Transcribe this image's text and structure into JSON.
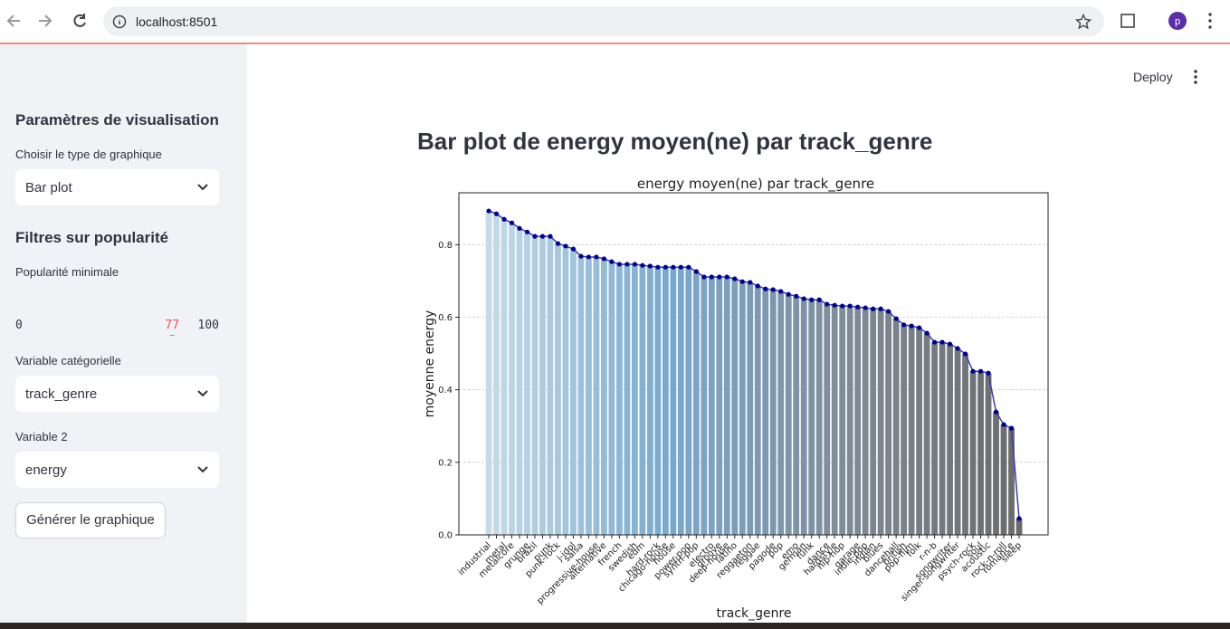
{
  "browser": {
    "url": "localhost:8501"
  },
  "header": {
    "deploy": "Deploy"
  },
  "sidebar": {
    "title_params": "Paramètres de visualisation",
    "chart_type_label": "Choisir le type de graphique",
    "chart_type": "Bar plot",
    "title_filters": "Filtres sur popularité",
    "slider": {
      "label": "Popularité minimale",
      "value": 77,
      "min": 0,
      "max": 100
    },
    "cat_label": "Variable catégorielle",
    "cat": "track_genre",
    "var2_label": "Variable 2",
    "var2": "energy",
    "button": "Générer le graphique"
  },
  "heading": "Bar plot de energy moyen(ne) par track_genre",
  "chart_data": {
    "type": "bar",
    "title": "energy moyen(ne) par track_genre",
    "x_label": "track_genre",
    "y_label": "moyenne energy",
    "categories": [
      "industrial",
      null,
      "metal",
      "metalcore",
      null,
      "grunge",
      "brazil",
      null,
      "punk",
      "punk-rock",
      null,
      "j-idol",
      "salsa",
      null,
      "progressive-house",
      "alternative",
      null,
      "french",
      null,
      "swedish",
      "edm",
      null,
      "hard-rock",
      "chicago-house",
      "house",
      null,
      "power-pop",
      "synth-pop",
      null,
      "electro",
      "groove",
      "deep-house",
      "latino",
      null,
      "reggaeton",
      "reggae",
      null,
      "pagode",
      "pop",
      null,
      "emo",
      "german",
      "funk",
      null,
      "dance",
      "hardstyle",
      "hip-hop",
      null,
      "garage",
      "indie-pop",
      "indian",
      "blues",
      null,
      "dancehall",
      "british",
      "pop-film",
      "folk",
      null,
      "r-n-b",
      null,
      "songwriter",
      "singer-songwriter",
      null,
      "psych-rock",
      "soul",
      "acoustic",
      null,
      "rock-n-roll",
      "romance",
      "sleep"
    ],
    "values": [
      0.893,
      0.885,
      0.87,
      0.86,
      0.845,
      0.835,
      0.823,
      0.823,
      0.823,
      0.803,
      0.796,
      0.788,
      0.768,
      0.766,
      0.766,
      0.761,
      0.753,
      0.746,
      0.746,
      0.746,
      0.743,
      0.741,
      0.738,
      0.738,
      0.738,
      0.738,
      0.738,
      0.726,
      0.711,
      0.711,
      0.711,
      0.711,
      0.706,
      0.698,
      0.696,
      0.686,
      0.678,
      0.676,
      0.671,
      0.663,
      0.658,
      0.651,
      0.648,
      0.648,
      0.636,
      0.633,
      0.631,
      0.631,
      0.628,
      0.626,
      0.623,
      0.623,
      0.616,
      0.596,
      0.579,
      0.576,
      0.571,
      0.556,
      0.531,
      0.531,
      0.526,
      0.514,
      0.499,
      0.451,
      0.451,
      0.446,
      0.339,
      0.304,
      0.294,
      0.045
    ],
    "ylim": [
      0,
      0.943
    ],
    "yticks": [
      {
        "value": 0,
        "label": "0.0"
      },
      {
        "value": 0.2,
        "label": "0.2"
      },
      {
        "value": 0.4,
        "label": "0.4"
      },
      {
        "value": 0.6,
        "label": "0.6"
      },
      {
        "value": 0.8,
        "label": "0.8"
      }
    ],
    "grid": true,
    "colors": [
      "#c5dbe7",
      "#7aa9ce",
      "#7f8d99",
      "#6a6a6a"
    ],
    "line_color": "#3c3cb4",
    "marker_color": "#00008b"
  }
}
